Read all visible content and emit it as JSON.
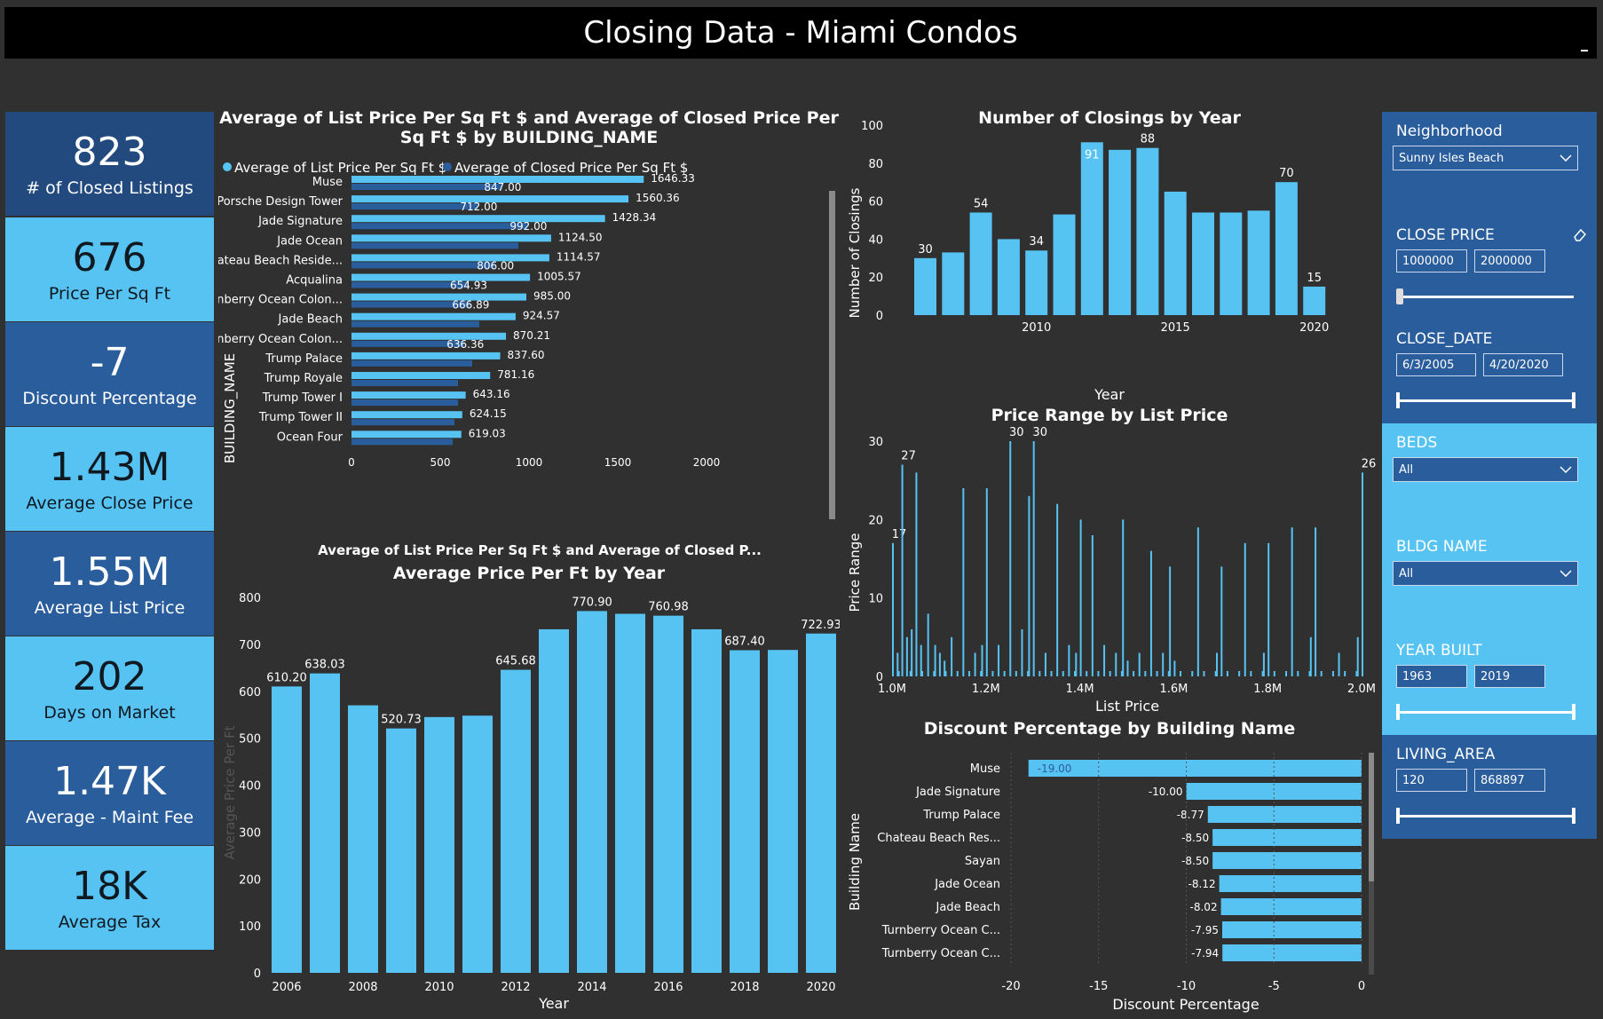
{
  "page": {
    "title": "Closing Data - Miami Condos"
  },
  "kpis": [
    {
      "value": "823",
      "label": "# of Closed Listings",
      "style": "darkest"
    },
    {
      "value": "676",
      "label": "Price Per Sq Ft",
      "style": "light"
    },
    {
      "value": "-7",
      "label": "Discount Percentage",
      "style": "dark"
    },
    {
      "value": "1.43M",
      "label": "Average Close Price",
      "style": "light"
    },
    {
      "value": "1.55M",
      "label": "Average List Price",
      "style": "dark"
    },
    {
      "value": "202",
      "label": "Days on Market",
      "style": "light"
    },
    {
      "value": "1.47K",
      "label": "Average - Maint Fee",
      "style": "dark"
    },
    {
      "value": "18K",
      "label": "Average Tax",
      "style": "light"
    }
  ],
  "slicers": {
    "neighborhood": {
      "title": "Neighborhood",
      "value": "Sunny Isles Beach"
    },
    "close_price": {
      "title": "CLOSE PRICE",
      "min": "1000000",
      "max": "2000000"
    },
    "close_date": {
      "title": "CLOSE_DATE",
      "min": "6/3/2005",
      "max": "4/20/2020"
    },
    "beds": {
      "title": "BEDS",
      "value": "All"
    },
    "bldg_name": {
      "title": "BLDG NAME",
      "value": "All"
    },
    "year_built": {
      "title": "YEAR BUILT",
      "min": "1963",
      "max": "2019"
    },
    "living_area": {
      "title": "LIVING_AREA",
      "min": "120",
      "max": "868897"
    }
  },
  "colors": {
    "light": "#56c3f3",
    "dark": "#2a5d9c",
    "darkest": "#224a7e",
    "bg": "#303030"
  },
  "chart_data": [
    {
      "id": "list-vs-closed",
      "type": "bar",
      "orientation": "horizontal",
      "title": "Average of List Price Per Sq Ft $ and Average of Closed Price Per Sq Ft $ by BUILDING_NAME",
      "xlabel": "Average of List Price Per Sq Ft $ and Average of Closed P...",
      "ylabel": "BUILDING_NAME",
      "xlim": [
        0,
        2000
      ],
      "xticks": [
        0,
        500,
        1000,
        1500,
        2000
      ],
      "categories": [
        "Muse",
        "Porsche Design Tower",
        "Jade Signature",
        "Jade Ocean",
        "Chateau Beach Reside...",
        "Acqualina",
        "Turnberry Ocean Colon...",
        "Jade Beach",
        "Turnberry Ocean Colon...",
        "Trump Palace",
        "Trump Royale",
        "Trump Tower I",
        "Trump Tower II",
        "Ocean Four"
      ],
      "series": [
        {
          "name": "Average of List Price Per Sq Ft $",
          "color": "#56c3f3",
          "values": [
            1646.33,
            1560.36,
            1428.34,
            1124.5,
            1114.57,
            1005.57,
            985.0,
            924.57,
            870.21,
            837.6,
            781.16,
            643.16,
            624.15,
            619.03
          ],
          "labels": [
            "1646.33",
            "1560.36",
            "1428.34",
            "1124.50",
            "1114.57",
            "1005.57",
            "985.00",
            "924.57",
            "870.21",
            "837.60",
            "781.16",
            "643.16",
            "624.15",
            "619.03"
          ]
        },
        {
          "name": "Average of Closed Price Per Sq Ft $",
          "color": "#2a5d9c",
          "values": [
            847.0,
            712.0,
            992.0,
            940,
            806.0,
            654.93,
            666.89,
            720,
            636.36,
            680,
            600,
            600,
            580,
            570
          ],
          "labels": [
            "847.00",
            "712.00",
            "992.00",
            "",
            "806.00",
            "654.93",
            "666.89",
            "",
            "636.36",
            "",
            "",
            "",
            "",
            ""
          ]
        }
      ]
    },
    {
      "id": "closings-by-year",
      "type": "bar",
      "title": "Number of Closings by Year",
      "xlabel": "Year",
      "ylabel": "Number of Closings",
      "ylim": [
        0,
        100
      ],
      "yticks": [
        0,
        20,
        40,
        60,
        80,
        100
      ],
      "xtick_labels": [
        "2010",
        "2015",
        "2020"
      ],
      "categories": [
        2006,
        2007,
        2008,
        2009,
        2010,
        2011,
        2012,
        2013,
        2014,
        2015,
        2016,
        2017,
        2018,
        2019,
        2020
      ],
      "values": [
        30,
        33,
        54,
        40,
        34,
        53,
        91,
        87,
        88,
        65,
        54,
        54,
        55,
        70,
        15
      ],
      "labels": [
        "30",
        "",
        "54",
        "",
        "34",
        "",
        "91",
        "",
        "88",
        "",
        "",
        "",
        "",
        "70",
        "15"
      ]
    },
    {
      "id": "price-range",
      "type": "bar",
      "title": "Price Range by List Price",
      "xlabel": "List Price",
      "ylabel": "Price Range",
      "ylim": [
        0,
        30
      ],
      "yticks": [
        0,
        10,
        20,
        30
      ],
      "xlim": [
        1000000,
        2000000
      ],
      "xtick_labels": [
        "1.0M",
        "1.2M",
        "1.4M",
        "1.6M",
        "1.8M",
        "2.0M"
      ],
      "x": [
        1000000,
        1010000,
        1020000,
        1030000,
        1040000,
        1050000,
        1060000,
        1075000,
        1090000,
        1100000,
        1110000,
        1125000,
        1150000,
        1175000,
        1190000,
        1200000,
        1225000,
        1250000,
        1275000,
        1290000,
        1300000,
        1325000,
        1350000,
        1375000,
        1390000,
        1400000,
        1425000,
        1450000,
        1475000,
        1490000,
        1500000,
        1525000,
        1550000,
        1575000,
        1590000,
        1600000,
        1650000,
        1690000,
        1700000,
        1750000,
        1790000,
        1800000,
        1850000,
        1890000,
        1900000,
        1950000,
        1990000,
        2000000
      ],
      "values": [
        17,
        3,
        27,
        5,
        6,
        26,
        4,
        8,
        4,
        3,
        2,
        5,
        24,
        3,
        4,
        24,
        4,
        30,
        6,
        23,
        30,
        3,
        22,
        4,
        3,
        20,
        18,
        4,
        3,
        20,
        2,
        3,
        16,
        3,
        14,
        2,
        19,
        3,
        14,
        17,
        3,
        17,
        19,
        5,
        19,
        3,
        5,
        26
      ],
      "labels": {
        "0": "17",
        "2": "27",
        "17": "30",
        "20": "30",
        "47": "26"
      }
    },
    {
      "id": "avg-price-per-ft",
      "type": "bar",
      "title": "Average Price Per Ft by Year",
      "xlabel": "Year",
      "ylabel": "Average Price Per Ft",
      "ylim": [
        0,
        800
      ],
      "yticks": [
        0,
        100,
        200,
        300,
        400,
        500,
        600,
        700,
        800
      ],
      "xtick_labels": [
        "2006",
        "2008",
        "2010",
        "2012",
        "2014",
        "2016",
        "2018",
        "2020"
      ],
      "categories": [
        2006,
        2007,
        2008,
        2009,
        2010,
        2011,
        2012,
        2013,
        2014,
        2015,
        2016,
        2017,
        2018,
        2019,
        2020
      ],
      "values": [
        610.2,
        638.03,
        570,
        520.73,
        545,
        548,
        645.68,
        732,
        770.9,
        765,
        760.98,
        732,
        687.4,
        688,
        722.93
      ],
      "labels": [
        "610.20",
        "638.03",
        "",
        "520.73",
        "",
        "",
        "645.68",
        "",
        "770.90",
        "",
        "760.98",
        "",
        "687.40",
        "",
        "722.93"
      ]
    },
    {
      "id": "discount-by-building",
      "type": "bar",
      "orientation": "horizontal",
      "title": "Discount Percentage by Building Name",
      "xlabel": "Discount Percentage",
      "ylabel": "Building Name",
      "xlim": [
        -20,
        0
      ],
      "xticks": [
        -20,
        -15,
        -10,
        -5,
        0
      ],
      "categories": [
        "Muse",
        "Jade Signature",
        "Trump Palace",
        "Chateau Beach Res...",
        "Sayan",
        "Jade Ocean",
        "Jade Beach",
        "Turnberry Ocean C...",
        "Turnberry Ocean C..."
      ],
      "values": [
        -19.0,
        -10.0,
        -8.77,
        -8.5,
        -8.5,
        -8.12,
        -8.02,
        -7.95,
        -7.94
      ],
      "labels": [
        "-19.00",
        "-10.00",
        "-8.77",
        "-8.50",
        "-8.50",
        "-8.12",
        "-8.02",
        "-7.95",
        "-7.94"
      ]
    }
  ]
}
